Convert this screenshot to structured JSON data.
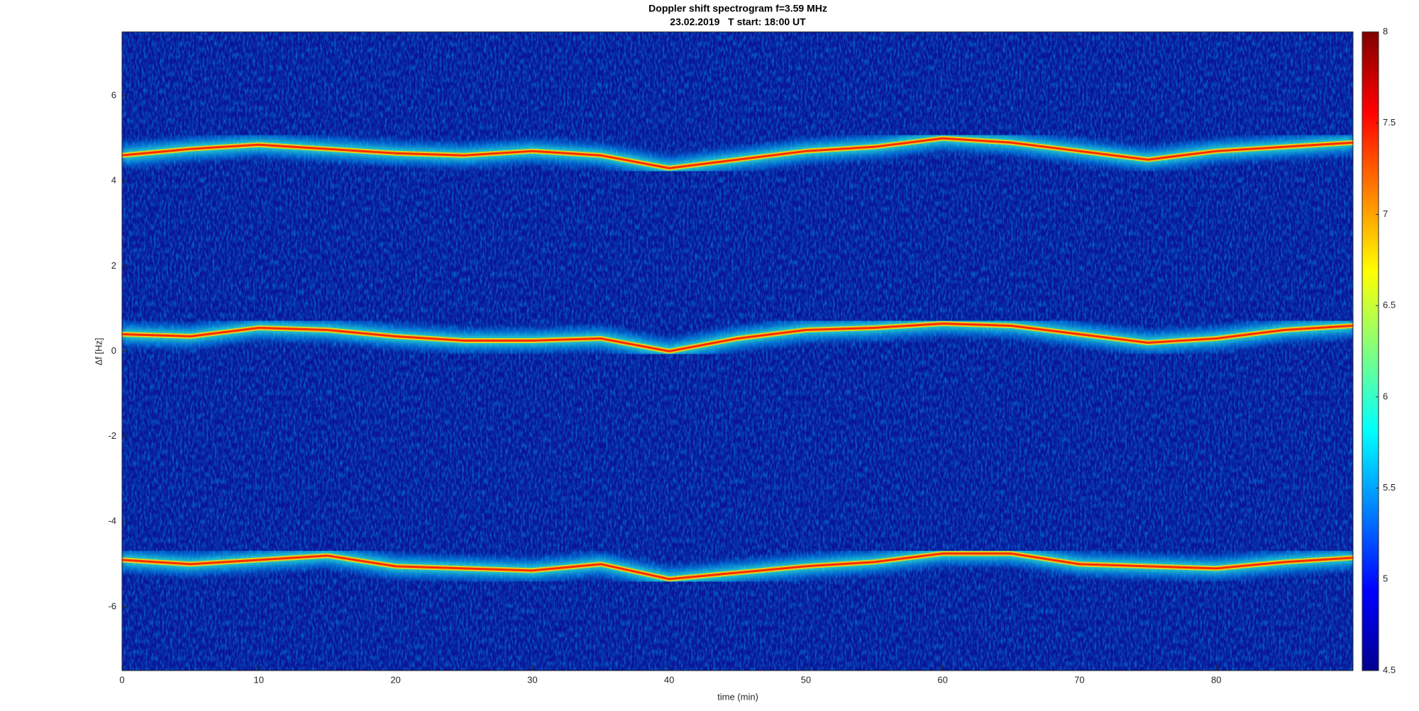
{
  "chart_data": {
    "type": "spectrogram",
    "title": "Doppler shift spectrogram f=3.59 MHz",
    "subtitle": "23.02.2019   T start: 18:00 UT",
    "x_label": "time (min)",
    "y_label": "Δf [Hz]",
    "xlim": [
      0,
      90
    ],
    "xticks": [
      0,
      10,
      20,
      30,
      40,
      50,
      60,
      70,
      80
    ],
    "ylim": [
      -7.5,
      7.5
    ],
    "yticks": [
      -6,
      -4,
      -2,
      0,
      2,
      4,
      6
    ],
    "clim": [
      4.5,
      8
    ],
    "cticks": [
      4.5,
      5,
      5.5,
      6,
      6.5,
      7,
      7.5,
      8
    ],
    "x": [
      0,
      5,
      10,
      15,
      20,
      25,
      30,
      35,
      40,
      45,
      50,
      55,
      60,
      65,
      70,
      75,
      80,
      85,
      90
    ],
    "series": [
      {
        "color": "#ff2a00",
        "values": [
          4.6,
          4.75,
          4.85,
          4.75,
          4.65,
          4.6,
          4.7,
          4.6,
          4.3,
          4.5,
          4.7,
          4.8,
          5.0,
          4.9,
          4.7,
          4.5,
          4.7,
          4.8,
          4.9
        ]
      },
      {
        "color": "#ff2a00",
        "values": [
          0.4,
          0.35,
          0.55,
          0.5,
          0.35,
          0.25,
          0.25,
          0.3,
          0.0,
          0.3,
          0.5,
          0.55,
          0.65,
          0.6,
          0.4,
          0.2,
          0.3,
          0.5,
          0.6
        ]
      },
      {
        "color": "#ff2a00",
        "values": [
          -4.9,
          -5.0,
          -4.9,
          -4.8,
          -5.05,
          -5.1,
          -5.15,
          -5.0,
          -5.35,
          -5.2,
          -5.05,
          -4.95,
          -4.75,
          -4.75,
          -5.0,
          -5.05,
          -5.1,
          -4.95,
          -4.85
        ]
      }
    ]
  }
}
